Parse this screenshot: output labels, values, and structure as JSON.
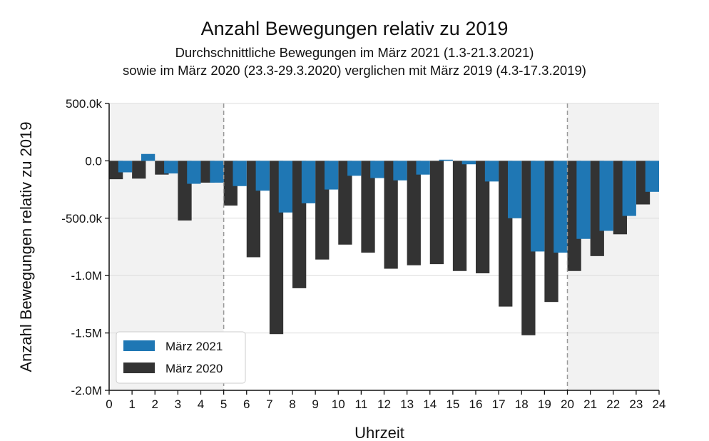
{
  "chart_data": {
    "type": "bar",
    "title": "Anzahl Bewegungen relativ zu 2019",
    "subtitle_lines": [
      "Durchschnittliche Bewegungen im März 2021 (1.3-21.3.2021)",
      "sowie im März 2020 (23.3-29.3.2020) verglichen mit März 2019 (4.3-17.3.2019)"
    ],
    "xlabel": "Uhrzeit",
    "ylabel": "Anzahl Bewegungen relativ zu 2019",
    "xlim": [
      0,
      24
    ],
    "ylim": [
      -2000000,
      500000
    ],
    "x_ticks": [
      0,
      1,
      2,
      3,
      4,
      5,
      6,
      7,
      8,
      9,
      10,
      11,
      12,
      13,
      14,
      15,
      16,
      17,
      18,
      19,
      20,
      21,
      22,
      23,
      24
    ],
    "y_ticks": [
      {
        "value": 500000,
        "label": "500.0k"
      },
      {
        "value": 0,
        "label": "0.0"
      },
      {
        "value": -500000,
        "label": "-500.0k"
      },
      {
        "value": -1000000,
        "label": "-1.0M"
      },
      {
        "value": -1500000,
        "label": "-1.5M"
      },
      {
        "value": -2000000,
        "label": "-2.0M"
      }
    ],
    "grid": true,
    "shaded_ranges": [
      [
        0,
        5
      ],
      [
        20,
        24
      ]
    ],
    "vertical_dashed_lines": [
      5,
      20
    ],
    "legend_position": "lower-left",
    "series": [
      {
        "name": "März 2020",
        "color": "#333333",
        "offset": -0.2,
        "values": [
          -160000,
          -155000,
          -120000,
          -520000,
          -190000,
          -390000,
          -840000,
          -1510000,
          -1110000,
          -860000,
          -730000,
          -800000,
          -940000,
          -910000,
          -900000,
          -960000,
          -980000,
          -1270000,
          -1520000,
          -1230000,
          -960000,
          -830000,
          -640000,
          -380000
        ]
      },
      {
        "name": "März 2021",
        "color": "#1f77b4",
        "offset": 0.2,
        "values": [
          -100000,
          60000,
          -110000,
          -200000,
          -190000,
          -220000,
          -260000,
          -450000,
          -370000,
          -250000,
          -130000,
          -150000,
          -170000,
          -120000,
          10000,
          -30000,
          -180000,
          -500000,
          -790000,
          -800000,
          -680000,
          -610000,
          -480000,
          -270000
        ]
      }
    ],
    "legend_entries": [
      "März 2021",
      "März 2020"
    ],
    "colors": {
      "shade": "#f2f2f2",
      "grid": "#dcdcdc",
      "dashed": "#999999"
    }
  }
}
